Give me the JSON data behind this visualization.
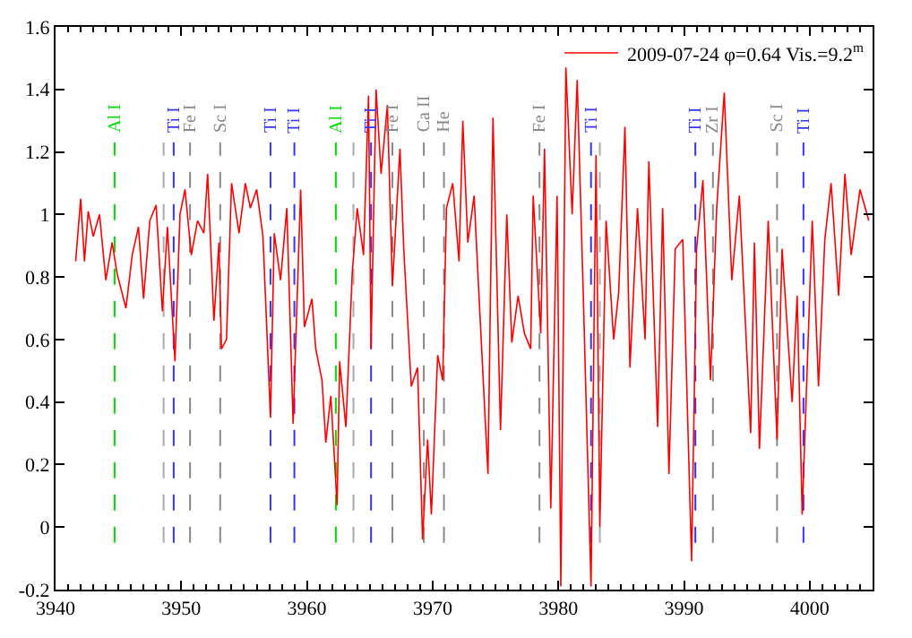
{
  "chart_data": {
    "type": "line",
    "xlim": [
      3940,
      4005
    ],
    "ylim": [
      -0.2,
      1.6
    ],
    "xticks": [
      3940,
      3950,
      3960,
      3970,
      3980,
      3990,
      4000
    ],
    "yticks": [
      {
        "value": -0.2,
        "label": "-0.2"
      },
      {
        "value": 0,
        "label": "0"
      },
      {
        "value": 0.2,
        "label": "0.2"
      },
      {
        "value": 0.4,
        "label": "0.4"
      },
      {
        "value": 0.6,
        "label": "0.6"
      },
      {
        "value": 0.8,
        "label": "0.8"
      },
      {
        "value": 1,
        "label": "1"
      },
      {
        "value": 1.2,
        "label": "1.2"
      },
      {
        "value": 1.4,
        "label": "1.4"
      },
      {
        "value": 1.6,
        "label": "1.6"
      }
    ],
    "grid": false,
    "legend": "top right",
    "marker": "none",
    "line_style": "solid",
    "series": [
      {
        "name": "2009-07-24 φ=0.64 Vis.=9.2$^{m}$",
        "color": "#ff0000",
        "x": [
          3941.6,
          3942.0,
          3942.3,
          3942.6,
          3943.0,
          3943.5,
          3944.0,
          3944.5,
          3944.9,
          3945.6,
          3946.1,
          3946.6,
          3947.0,
          3947.5,
          3948.0,
          3948.5,
          3948.9,
          3949.5,
          3949.9,
          3950.3,
          3950.8,
          3951.3,
          3951.8,
          3952.1,
          3952.6,
          3953.0,
          3953.2,
          3953.6,
          3954.0,
          3954.6,
          3955.1,
          3955.5,
          3956.0,
          3956.5,
          3957.1,
          3957.4,
          3957.9,
          3958.4,
          3958.9,
          3959.5,
          3959.8,
          3960.4,
          3960.7,
          3961.2,
          3961.5,
          3961.9,
          3962.4,
          3962.6,
          3963.1,
          3963.6,
          3964.0,
          3964.5,
          3964.9,
          3965.1,
          3965.5,
          3965.9,
          3966.4,
          3966.8,
          3967.4,
          3967.7,
          3968.3,
          3968.8,
          3969.2,
          3969.6,
          3969.9,
          3970.4,
          3970.8,
          3971.1,
          3971.6,
          3972.1,
          3972.4,
          3972.8,
          3973.3,
          3973.7,
          3974.4,
          3974.8,
          3975.4,
          3975.9,
          3976.3,
          3976.8,
          3977.3,
          3977.8,
          3978.0,
          3978.6,
          3978.9,
          3979.4,
          3979.9,
          3980.2,
          3980.6,
          3981.1,
          3981.5,
          3982.0,
          3982.6,
          3983.0,
          3983.3,
          3983.8,
          3984.4,
          3984.8,
          3985.3,
          3985.7,
          3986.3,
          3986.9,
          3987.2,
          3987.9,
          3988.3,
          3988.8,
          3989.3,
          3989.9,
          3990.6,
          3991.0,
          3991.5,
          3992.1,
          3992.6,
          3993.2,
          3993.8,
          3994.4,
          3995.3,
          3995.6,
          3996.0,
          3996.7,
          3997.4,
          3997.8,
          3998.6,
          3999.0,
          3999.4,
          3999.8,
          4000.2,
          4000.7,
          4001.2,
          4001.7,
          4002.3,
          4002.8,
          4003.3,
          4004.0,
          4004.7
        ],
        "values": [
          0.85,
          1.05,
          0.85,
          1.01,
          0.93,
          1.0,
          0.79,
          0.91,
          0.81,
          0.7,
          0.87,
          0.96,
          0.73,
          0.98,
          1.03,
          0.69,
          0.96,
          0.53,
          1.0,
          1.08,
          0.87,
          0.98,
          0.94,
          1.13,
          0.66,
          0.91,
          0.57,
          0.6,
          1.1,
          0.94,
          1.1,
          1.02,
          1.08,
          0.93,
          0.35,
          0.94,
          0.79,
          1.02,
          0.33,
          1.08,
          0.64,
          0.73,
          0.57,
          0.47,
          0.27,
          0.42,
          0.07,
          0.53,
          0.32,
          0.81,
          1.02,
          0.87,
          1.38,
          0.57,
          1.4,
          1.13,
          1.35,
          0.77,
          1.21,
          0.89,
          0.45,
          0.51,
          -0.04,
          0.28,
          0.04,
          0.55,
          0.47,
          1.02,
          1.1,
          0.85,
          1.3,
          0.91,
          1.06,
          0.73,
          0.17,
          1.31,
          0.31,
          1.0,
          0.59,
          0.74,
          0.62,
          0.57,
          1.06,
          0.62,
          1.21,
          0.06,
          1.06,
          -0.19,
          1.47,
          1.0,
          1.43,
          0.72,
          -0.19,
          1.19,
          0.0,
          0.98,
          0.6,
          0.75,
          1.28,
          0.51,
          1.02,
          0.6,
          1.17,
          0.32,
          1.02,
          0.17,
          0.89,
          0.92,
          -0.11,
          0.89,
          1.11,
          0.47,
          1.02,
          1.39,
          0.79,
          1.06,
          0.3,
          0.91,
          0.25,
          0.98,
          0.28,
          0.89,
          0.4,
          0.74,
          0.04,
          0.51,
          0.98,
          0.45,
          0.92,
          1.1,
          0.74,
          1.13,
          0.87,
          1.08,
          0.98
        ]
      }
    ],
    "ref_lines": [
      {
        "axis": "x",
        "value": 3944.7,
        "label": "Al I",
        "color": "#00dd00",
        "line_style": "dashed"
      },
      {
        "axis": "x",
        "value": 3948.6,
        "color": "#aaaaaa",
        "line_style": "dashed"
      },
      {
        "axis": "x",
        "value": 3949.4,
        "label": "Ti I",
        "color": "#3333ff",
        "line_style": "dashed"
      },
      {
        "axis": "x",
        "value": 3950.7,
        "label": "Fe I",
        "color": "#888888",
        "line_style": "dashed"
      },
      {
        "axis": "x",
        "value": 3953.1,
        "label": "Sc I",
        "color": "#888888",
        "line_style": "dashed"
      },
      {
        "axis": "x",
        "value": 3957.1,
        "label": "Ti I",
        "color": "#3333ff",
        "line_style": "dashed"
      },
      {
        "axis": "x",
        "value": 3959.0,
        "label": "Ti I",
        "color": "#3333ff",
        "line_style": "dashed"
      },
      {
        "axis": "x",
        "value": 3962.3,
        "label": "Al I",
        "color": "#00dd00",
        "line_style": "dashed"
      },
      {
        "axis": "x",
        "value": 3963.7,
        "color": "#aaaaaa",
        "line_style": "dashed"
      },
      {
        "axis": "x",
        "value": 3965.1,
        "label": "Ti I",
        "color": "#3333ff",
        "line_style": "dashed"
      },
      {
        "axis": "x",
        "value": 3966.8,
        "label": "Fe I",
        "color": "#888888",
        "line_style": "dashed"
      },
      {
        "axis": "x",
        "value": 3969.3,
        "label": "Ca II",
        "color": "#888888",
        "line_style": "dashed"
      },
      {
        "axis": "x",
        "value": 3970.9,
        "label": "He",
        "color": "#888888",
        "line_style": "dashed"
      },
      {
        "axis": "x",
        "value": 3978.5,
        "label": "Fe I",
        "color": "#888888",
        "line_style": "dashed"
      },
      {
        "axis": "x",
        "value": 3982.6,
        "label": "Ti I",
        "color": "#3333ff",
        "line_style": "dashed"
      },
      {
        "axis": "x",
        "value": 3983.3,
        "color": "#aaaaaa",
        "line_style": "dashed"
      },
      {
        "axis": "x",
        "value": 3990.9,
        "label": "Ti I",
        "color": "#3333ff",
        "line_style": "dashed"
      },
      {
        "axis": "x",
        "value": 3992.3,
        "label": "Zr I",
        "color": "#888888",
        "line_style": "dashed"
      },
      {
        "axis": "x",
        "value": 3997.4,
        "label": "Sc I",
        "color": "#888888",
        "line_style": "dashed"
      },
      {
        "axis": "x",
        "value": 3999.5,
        "label": "Ti I",
        "color": "#3333ff",
        "line_style": "dashed"
      }
    ]
  }
}
